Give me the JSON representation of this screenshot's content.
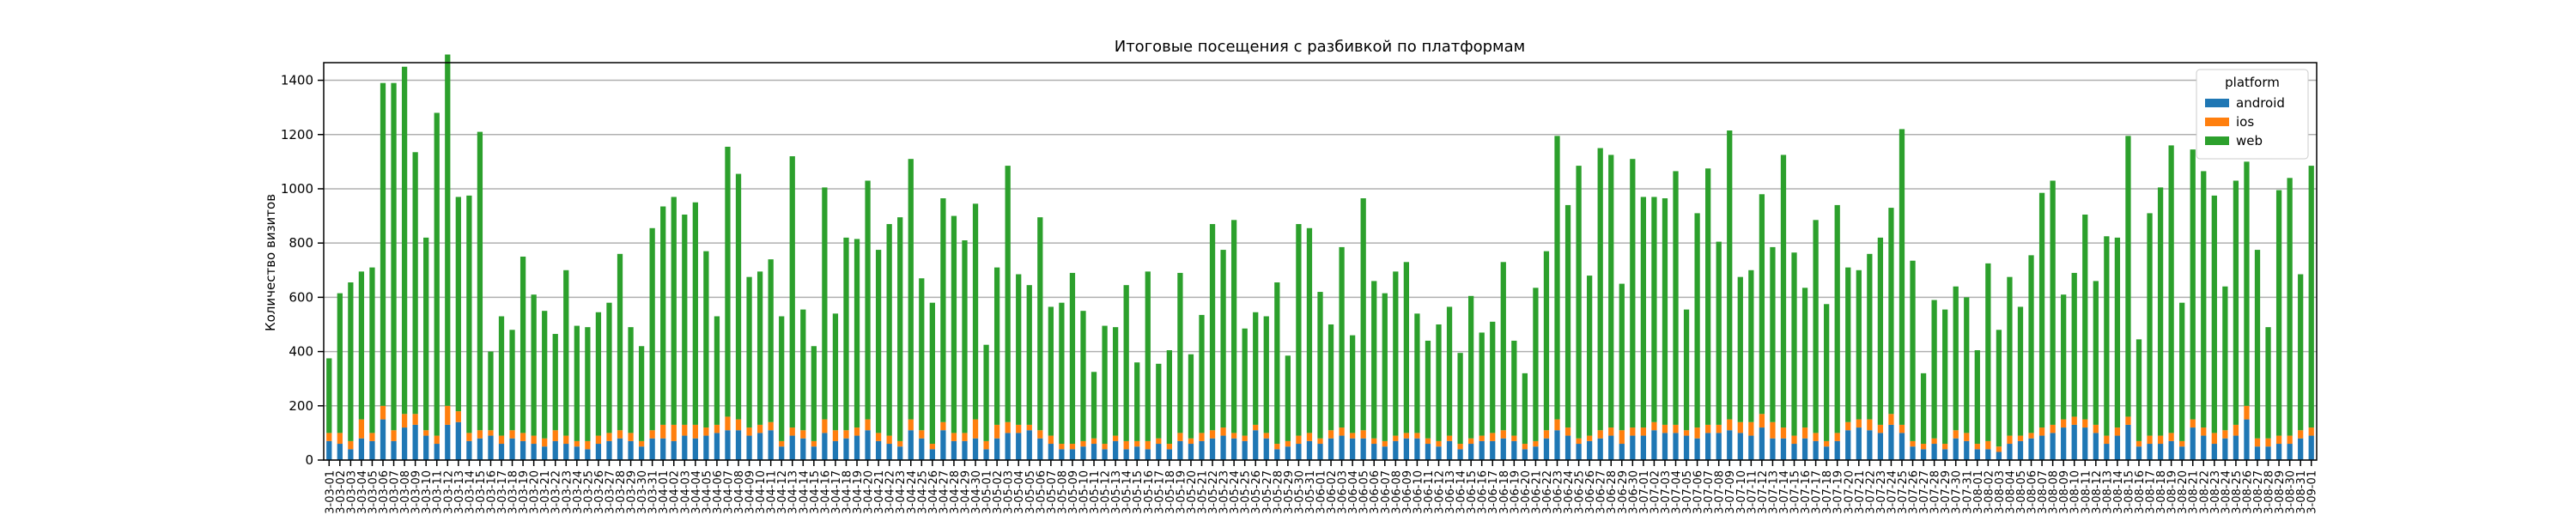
{
  "chart_data": {
    "type": "stacked_bar",
    "title": "Итоговые посещения с разбивкой по платформам",
    "ylabel": "Количество визитов",
    "legend_title": "platform",
    "legend": "upper right",
    "grid": true,
    "ylim": [
      0,
      1465
    ],
    "yticks": [
      0,
      200,
      400,
      600,
      800,
      1000,
      1200,
      1400
    ],
    "categories": [
      "3-03-01",
      "3-03-02",
      "3-03-03",
      "3-03-04",
      "3-03-05",
      "3-03-06",
      "3-03-07",
      "3-03-08",
      "3-03-09",
      "3-03-10",
      "3-03-11",
      "3-03-12",
      "3-03-13",
      "3-03-14",
      "3-03-15",
      "3-03-16",
      "3-03-17",
      "3-03-18",
      "3-03-19",
      "3-03-20",
      "3-03-21",
      "3-03-22",
      "3-03-23",
      "3-03-24",
      "3-03-25",
      "3-03-26",
      "3-03-27",
      "3-03-28",
      "3-03-29",
      "3-03-30",
      "3-03-31",
      "3-04-01",
      "3-04-02",
      "3-04-03",
      "3-04-04",
      "3-04-05",
      "3-04-06",
      "3-04-07",
      "3-04-08",
      "3-04-09",
      "3-04-10",
      "3-04-11",
      "3-04-12",
      "3-04-13",
      "3-04-14",
      "3-04-15",
      "3-04-16",
      "3-04-17",
      "3-04-18",
      "3-04-19",
      "3-04-20",
      "3-04-21",
      "3-04-22",
      "3-04-23",
      "3-04-24",
      "3-04-25",
      "3-04-26",
      "3-04-27",
      "3-04-28",
      "3-04-29",
      "3-04-30",
      "3-05-01",
      "3-05-02",
      "3-05-03",
      "3-05-04",
      "3-05-05",
      "3-05-06",
      "3-05-07",
      "3-05-08",
      "3-05-09",
      "3-05-10",
      "3-05-11",
      "3-05-12",
      "3-05-13",
      "3-05-14",
      "3-05-15",
      "3-05-16",
      "3-05-17",
      "3-05-18",
      "3-05-19",
      "3-05-20",
      "3-05-21",
      "3-05-22",
      "3-05-23",
      "3-05-24",
      "3-05-25",
      "3-05-26",
      "3-05-27",
      "3-05-28",
      "3-05-29",
      "3-05-30",
      "3-05-31",
      "3-06-01",
      "3-06-02",
      "3-06-03",
      "3-06-04",
      "3-06-05",
      "3-06-06",
      "3-06-07",
      "3-06-08",
      "3-06-09",
      "3-06-10",
      "3-06-11",
      "3-06-12",
      "3-06-13",
      "3-06-14",
      "3-06-15",
      "3-06-16",
      "3-06-17",
      "3-06-18",
      "3-06-19",
      "3-06-20",
      "3-06-21",
      "3-06-22",
      "3-06-23",
      "3-06-24",
      "3-06-25",
      "3-06-26",
      "3-06-27",
      "3-06-28",
      "3-06-29",
      "3-06-30",
      "3-07-01",
      "3-07-02",
      "3-07-03",
      "3-07-04",
      "3-07-05",
      "3-07-06",
      "3-07-07",
      "3-07-08",
      "3-07-09",
      "3-07-10",
      "3-07-11",
      "3-07-12",
      "3-07-13",
      "3-07-14",
      "3-07-15",
      "3-07-16",
      "3-07-17",
      "3-07-18",
      "3-07-19",
      "3-07-20",
      "3-07-21",
      "3-07-22",
      "3-07-23",
      "3-07-24",
      "3-07-25",
      "3-07-26",
      "3-07-27",
      "3-07-28",
      "3-07-29",
      "3-07-30",
      "3-07-31",
      "3-08-01",
      "3-08-02",
      "3-08-03",
      "3-08-04",
      "3-08-05",
      "3-08-06",
      "3-08-07",
      "3-08-08",
      "3-08-09",
      "3-08-10",
      "3-08-11",
      "3-08-12",
      "3-08-13",
      "3-08-14",
      "3-08-15",
      "3-08-16",
      "3-08-17",
      "3-08-18",
      "3-08-19",
      "3-08-20",
      "3-08-21",
      "3-08-22",
      "3-08-23",
      "3-08-24",
      "3-08-25",
      "3-08-26",
      "3-08-27",
      "3-08-28",
      "3-08-29",
      "3-08-30",
      "3-08-31",
      "3-09-01"
    ],
    "series": [
      {
        "name": "android",
        "color": "#1f77b4",
        "values": [
          70,
          60,
          40,
          80,
          70,
          150,
          70,
          120,
          130,
          90,
          60,
          130,
          140,
          70,
          80,
          90,
          60,
          80,
          70,
          60,
          50,
          70,
          60,
          50,
          40,
          60,
          70,
          80,
          70,
          50,
          80,
          80,
          70,
          90,
          80,
          90,
          100,
          110,
          110,
          90,
          100,
          110,
          50,
          90,
          80,
          50,
          100,
          70,
          80,
          90,
          110,
          70,
          60,
          50,
          110,
          80,
          40,
          110,
          70,
          70,
          80,
          40,
          80,
          100,
          100,
          110,
          80,
          60,
          40,
          40,
          50,
          60,
          40,
          70,
          40,
          50,
          40,
          60,
          40,
          70,
          60,
          70,
          80,
          90,
          80,
          70,
          110,
          80,
          40,
          50,
          60,
          70,
          60,
          80,
          90,
          80,
          80,
          60,
          50,
          70,
          80,
          80,
          60,
          50,
          70,
          40,
          60,
          70,
          70,
          80,
          70,
          40,
          50,
          80,
          110,
          90,
          60,
          70,
          80,
          90,
          60,
          90,
          90,
          110,
          100,
          100,
          90,
          80,
          100,
          100,
          110,
          100,
          90,
          120,
          80,
          80,
          60,
          80,
          70,
          50,
          70,
          110,
          120,
          110,
          100,
          130,
          100,
          50,
          40,
          60,
          40,
          80,
          70,
          40,
          40,
          30,
          60,
          70,
          80,
          90,
          100,
          120,
          130,
          120,
          100,
          60,
          90,
          130,
          50,
          60,
          60,
          70,
          50,
          120,
          90,
          60,
          80,
          90,
          150,
          50,
          50,
          60,
          60,
          80,
          90
        ]
      },
      {
        "name": "ios",
        "color": "#ff7f0e",
        "values": [
          30,
          40,
          30,
          70,
          30,
          50,
          40,
          50,
          40,
          20,
          30,
          70,
          40,
          30,
          30,
          20,
          30,
          30,
          30,
          30,
          30,
          40,
          30,
          20,
          30,
          30,
          30,
          30,
          30,
          20,
          30,
          50,
          60,
          40,
          50,
          30,
          30,
          50,
          40,
          30,
          30,
          30,
          20,
          30,
          30,
          20,
          50,
          40,
          30,
          30,
          40,
          30,
          30,
          20,
          40,
          30,
          20,
          30,
          30,
          30,
          70,
          30,
          50,
          40,
          30,
          20,
          30,
          30,
          20,
          20,
          20,
          20,
          20,
          20,
          30,
          20,
          30,
          20,
          20,
          30,
          20,
          30,
          30,
          30,
          20,
          20,
          20,
          20,
          20,
          20,
          30,
          30,
          20,
          30,
          30,
          20,
          30,
          20,
          20,
          20,
          20,
          20,
          20,
          20,
          20,
          20,
          20,
          20,
          30,
          30,
          20,
          20,
          20,
          30,
          40,
          30,
          20,
          20,
          30,
          30,
          50,
          30,
          30,
          30,
          30,
          30,
          20,
          40,
          30,
          30,
          40,
          40,
          50,
          50,
          60,
          40,
          30,
          40,
          30,
          20,
          30,
          30,
          30,
          40,
          30,
          40,
          30,
          20,
          20,
          20,
          20,
          30,
          30,
          20,
          30,
          20,
          30,
          20,
          20,
          30,
          30,
          30,
          30,
          30,
          30,
          30,
          30,
          30,
          20,
          30,
          30,
          30,
          20,
          30,
          30,
          40,
          30,
          40,
          50,
          30,
          30,
          30,
          30,
          30,
          30
        ]
      },
      {
        "name": "web",
        "color": "#2ca02c",
        "values": [
          275,
          515,
          585,
          545,
          610,
          1190,
          1280,
          1280,
          965,
          710,
          1190,
          1295,
          790,
          875,
          1100,
          290,
          440,
          370,
          650,
          520,
          470,
          355,
          610,
          425,
          420,
          455,
          480,
          650,
          390,
          350,
          745,
          805,
          840,
          775,
          820,
          650,
          400,
          995,
          905,
          555,
          565,
          600,
          460,
          1000,
          445,
          350,
          855,
          430,
          710,
          695,
          880,
          675,
          780,
          825,
          960,
          560,
          520,
          825,
          800,
          710,
          795,
          355,
          580,
          945,
          555,
          515,
          785,
          475,
          520,
          630,
          480,
          245,
          435,
          400,
          575,
          290,
          625,
          275,
          345,
          590,
          310,
          435,
          760,
          655,
          785,
          395,
          415,
          430,
          595,
          315,
          780,
          755,
          540,
          390,
          665,
          360,
          855,
          580,
          545,
          605,
          630,
          440,
          360,
          430,
          475,
          335,
          525,
          380,
          410,
          620,
          350,
          260,
          565,
          660,
          1045,
          820,
          1005,
          590,
          1040,
          1005,
          540,
          990,
          850,
          830,
          835,
          935,
          445,
          790,
          945,
          675,
          1065,
          535,
          560,
          810,
          645,
          1005,
          675,
          515,
          785,
          505,
          840,
          570,
          550,
          610,
          690,
          760,
          1090,
          665,
          260,
          510,
          495,
          530,
          500,
          345,
          655,
          430,
          585,
          475,
          655,
          865,
          900,
          460,
          530,
          755,
          530,
          735,
          700,
          1035,
          375,
          820,
          915,
          1060,
          510,
          995,
          945,
          875,
          530,
          900,
          900,
          695,
          410,
          905,
          950,
          575,
          965
        ]
      }
    ]
  }
}
